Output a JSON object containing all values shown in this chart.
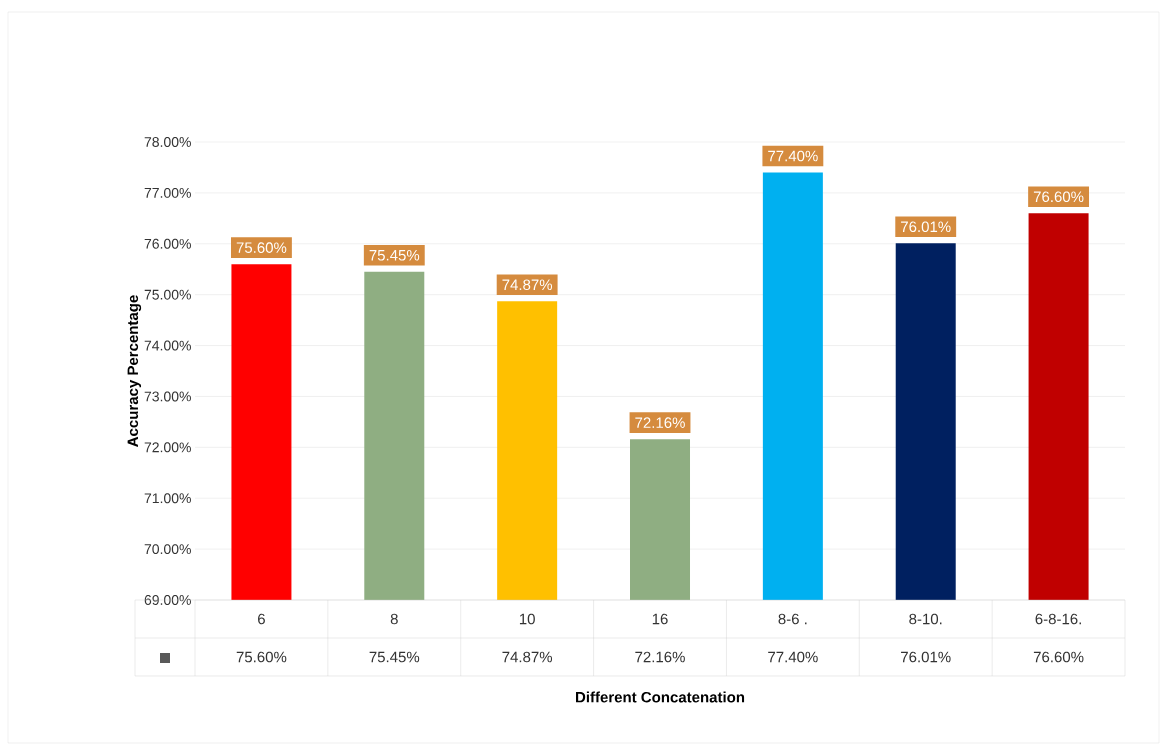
{
  "chart_data": {
    "type": "bar",
    "categories": [
      "6",
      "8",
      "10",
      "16",
      "8-6 .",
      "8-10.",
      "6-8-16."
    ],
    "values": [
      75.6,
      75.45,
      74.87,
      72.16,
      77.4,
      76.01,
      76.6
    ],
    "value_labels": [
      "75.60%",
      "75.45%",
      "74.87%",
      "72.16%",
      "77.40%",
      "76.01%",
      "76.60%"
    ],
    "colors": [
      "#ff0000",
      "#8fae82",
      "#ffc000",
      "#8fae82",
      "#00b0f0",
      "#002060",
      "#c00000"
    ],
    "ylim": [
      69,
      78
    ],
    "yticks": [
      {
        "value": 69,
        "label": "69.00%"
      },
      {
        "value": 70,
        "label": "70.00%"
      },
      {
        "value": 71,
        "label": "71.00%"
      },
      {
        "value": 72,
        "label": "72.00%"
      },
      {
        "value": 73,
        "label": "73.00%"
      },
      {
        "value": 74,
        "label": "74.00%"
      },
      {
        "value": 75,
        "label": "75.00%"
      },
      {
        "value": 76,
        "label": "76.00%"
      },
      {
        "value": 77,
        "label": "77.00%"
      },
      {
        "value": 78,
        "label": "78.00%"
      }
    ],
    "grid": "y",
    "xlabel": "Different Concatenation",
    "ylabel": "Accuracy Percentage"
  }
}
